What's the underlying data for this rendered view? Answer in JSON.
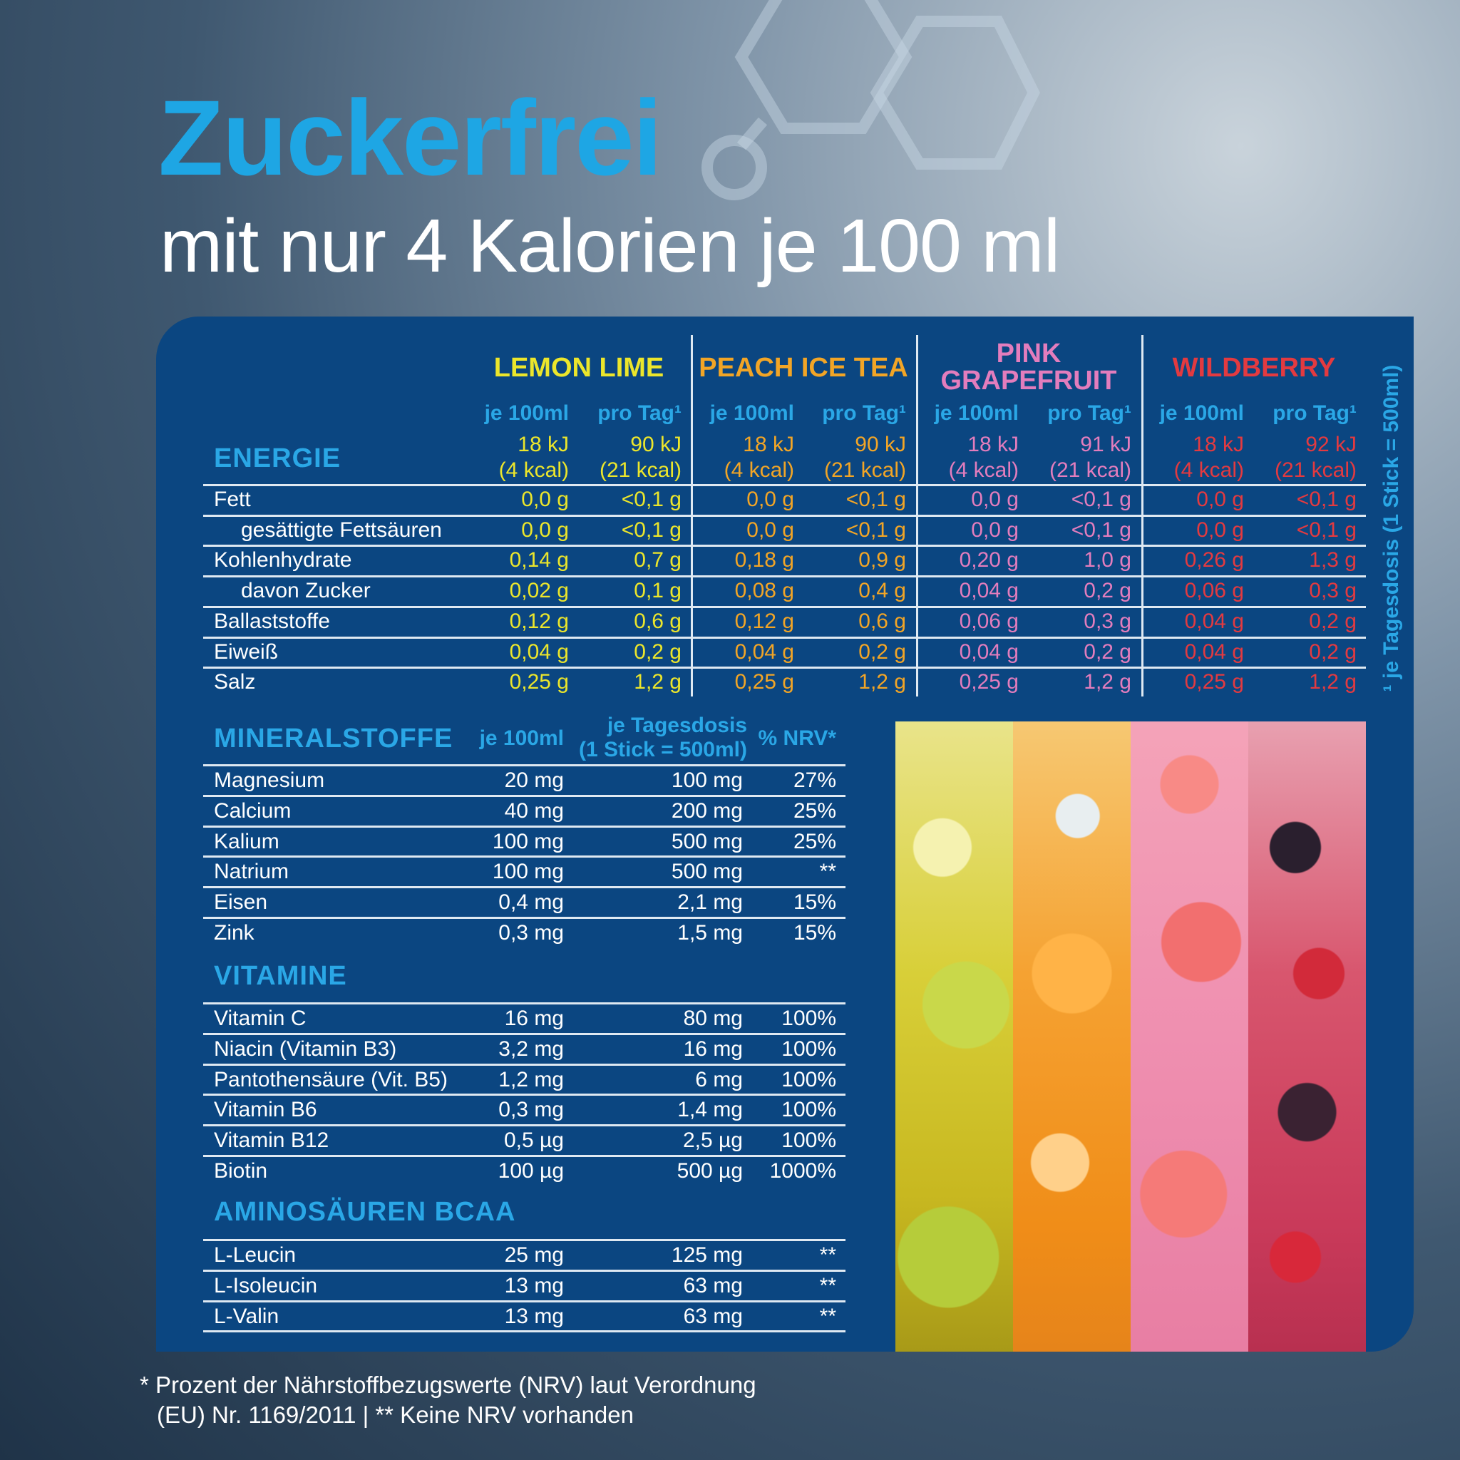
{
  "header": {
    "title": "Zuckerfrei",
    "subtitle": "mit nur 4 Kalorien je 100 ml"
  },
  "colors": {
    "accent": "#2aa7e6",
    "panel": "#0b4681",
    "lemon_lime": "#ece62b",
    "peach_ice_tea": "#f2a526",
    "pink_grapefruit": "#e37dbd",
    "wildberry": "#e33a40"
  },
  "nutrition": {
    "energy_label": "ENERGIE",
    "col_per100": "je 100ml",
    "col_perday": "pro Tag¹",
    "flavors": [
      {
        "name": "LEMON LIME",
        "name_lines": [
          "LEMON LIME"
        ],
        "color": "#ece62b",
        "energy": [
          [
            "18 kJ",
            "(4 kcal)"
          ],
          [
            "90 kJ",
            "(21 kcal)"
          ]
        ]
      },
      {
        "name": "PEACH ICE TEA",
        "name_lines": [
          "PEACH ICE TEA"
        ],
        "color": "#f2a526",
        "energy": [
          [
            "18 kJ",
            "(4 kcal)"
          ],
          [
            "90 kJ",
            "(21 kcal)"
          ]
        ]
      },
      {
        "name": "PINK GRAPEFRUIT",
        "name_lines": [
          "PINK",
          "GRAPEFRUIT"
        ],
        "color": "#e37dbd",
        "energy": [
          [
            "18 kJ",
            "(4 kcal)"
          ],
          [
            "91 kJ",
            "(21 kcal)"
          ]
        ]
      },
      {
        "name": "WILDBERRY",
        "name_lines": [
          "WILDBERRY"
        ],
        "color": "#e33a40",
        "energy": [
          [
            "18 kJ",
            "(4 kcal)"
          ],
          [
            "92 kJ",
            "(21 kcal)"
          ]
        ]
      }
    ],
    "rows": [
      {
        "label": "Fett",
        "indent": false,
        "values": [
          "0,0 g",
          "<0,1 g",
          "0,0 g",
          "<0,1 g",
          "0,0 g",
          "<0,1 g",
          "0,0 g",
          "<0,1 g"
        ]
      },
      {
        "label": "gesättigte Fettsäuren",
        "indent": true,
        "values": [
          "0,0 g",
          "<0,1 g",
          "0,0 g",
          "<0,1 g",
          "0,0 g",
          "<0,1 g",
          "0,0 g",
          "<0,1 g"
        ]
      },
      {
        "label": "Kohlenhydrate",
        "indent": false,
        "values": [
          "0,14 g",
          "0,7 g",
          "0,18 g",
          "0,9 g",
          "0,20 g",
          "1,0 g",
          "0,26 g",
          "1,3 g"
        ]
      },
      {
        "label": "davon Zucker",
        "indent": true,
        "values": [
          "0,02 g",
          "0,1 g",
          "0,08 g",
          "0,4 g",
          "0,04 g",
          "0,2 g",
          "0,06 g",
          "0,3 g"
        ]
      },
      {
        "label": "Ballaststoffe",
        "indent": false,
        "values": [
          "0,12 g",
          "0,6 g",
          "0,12 g",
          "0,6 g",
          "0,06 g",
          "0,3 g",
          "0,04 g",
          "0,2 g"
        ]
      },
      {
        "label": "Eiweiß",
        "indent": false,
        "values": [
          "0,04 g",
          "0,2 g",
          "0,04 g",
          "0,2 g",
          "0,04 g",
          "0,2 g",
          "0,04 g",
          "0,2 g"
        ]
      },
      {
        "label": "Salz",
        "indent": false,
        "values": [
          "0,25 g",
          "1,2 g",
          "0,25 g",
          "1,2 g",
          "0,25 g",
          "1,2 g",
          "0,25 g",
          "1,2 g"
        ]
      }
    ],
    "side_note": "¹ je Tagesdosis (1 Stick = 500ml)"
  },
  "minerals": {
    "title": "MINERALSTOFFE",
    "col_per100": "je 100ml",
    "col_daily": [
      "je Tagesdosis",
      "(1 Stick = 500ml)"
    ],
    "col_nrv": "% NRV*",
    "rows": [
      [
        "Magnesium",
        "20 mg",
        "100 mg",
        "27%"
      ],
      [
        "Calcium",
        "40 mg",
        "200 mg",
        "25%"
      ],
      [
        "Kalium",
        "100 mg",
        "500 mg",
        "25%"
      ],
      [
        "Natrium",
        "100 mg",
        "500 mg",
        "**"
      ],
      [
        "Eisen",
        "0,4 mg",
        "2,1 mg",
        "15%"
      ],
      [
        "Zink",
        "0,3 mg",
        "1,5 mg",
        "15%"
      ]
    ]
  },
  "vitamins": {
    "title": "VITAMINE",
    "rows": [
      [
        "Vitamin C",
        "16 mg",
        "80 mg",
        "100%"
      ],
      [
        "Niacin (Vitamin B3)",
        "3,2 mg",
        "16 mg",
        "100%"
      ],
      [
        "Pantothensäure (Vit. B5)",
        "1,2 mg",
        "6 mg",
        "100%"
      ],
      [
        "Vitamin B6",
        "0,3 mg",
        "1,4 mg",
        "100%"
      ],
      [
        "Vitamin B12",
        "0,5 µg",
        "2,5 µg",
        "100%"
      ],
      [
        "Biotin",
        "100 µg",
        "500 µg",
        "1000%"
      ]
    ]
  },
  "amino": {
    "title": "AMINOSÄUREN BCAA",
    "rows": [
      [
        "L-Leucin",
        "25 mg",
        "125 mg",
        "**"
      ],
      [
        "L-Isoleucin",
        "13 mg",
        "63 mg",
        "**"
      ],
      [
        "L-Valin",
        "13 mg",
        "63 mg",
        "**"
      ]
    ]
  },
  "footnote": {
    "line1": "* Prozent der Nährstoffbezugswerte (NRV) laut Verordnung",
    "line2": "(EU) Nr. 1169/2011 | ** Keine NRV vorhanden"
  }
}
